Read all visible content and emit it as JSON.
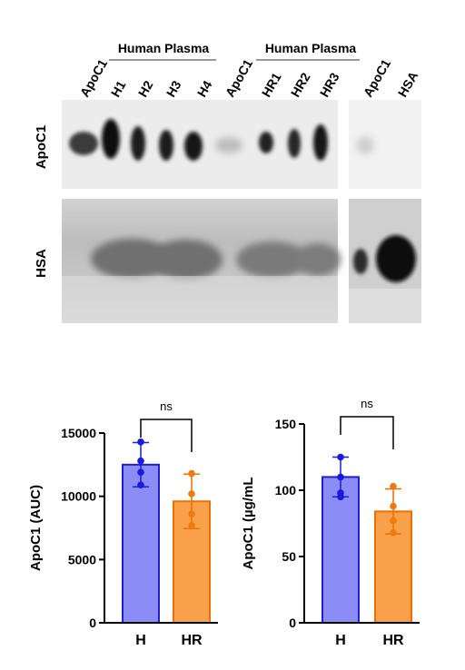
{
  "blot": {
    "groups": [
      "Human Plasma",
      "Human Plasma"
    ],
    "lane_labels": [
      "ApoC1",
      "H1",
      "H2",
      "H3",
      "H4",
      "ApoC1",
      "HR1",
      "HR2",
      "HR3",
      "ApoC1",
      "HSA"
    ],
    "row_labels": [
      "ApoC1",
      "HSA"
    ]
  },
  "chart_data": [
    {
      "type": "bar",
      "categories": [
        "H",
        "HR"
      ],
      "values": [
        12500,
        9600
      ],
      "errors": [
        1750,
        2150
      ],
      "points": [
        [
          14300,
          12800,
          11900,
          10900
        ],
        [
          11800,
          10200,
          8600,
          7700
        ]
      ],
      "colors": [
        "#8b8cf5",
        "#f9a14a"
      ],
      "edge_colors": [
        "#1f1fd1",
        "#ec6f00"
      ],
      "point_colors": [
        "#1919e0",
        "#f07a10"
      ],
      "ylabel": "ApoC1 (AUC)",
      "ylim": [
        0,
        15000
      ],
      "yticks": [
        0,
        5000,
        10000,
        15000
      ],
      "annotation": "ns"
    },
    {
      "type": "bar",
      "categories": [
        "H",
        "HR"
      ],
      "values": [
        110,
        84
      ],
      "errors": [
        15,
        17
      ],
      "points": [
        [
          125,
          110,
          98,
          95
        ],
        [
          103,
          88,
          77,
          68
        ]
      ],
      "colors": [
        "#8b8cf5",
        "#f9a14a"
      ],
      "edge_colors": [
        "#1f1fd1",
        "#ec6f00"
      ],
      "point_colors": [
        "#1919e0",
        "#f07a10"
      ],
      "ylabel": "ApoC1 (µg/mL",
      "ylim": [
        0,
        150
      ],
      "yticks": [
        0,
        50,
        100,
        150
      ],
      "annotation": "ns"
    }
  ]
}
